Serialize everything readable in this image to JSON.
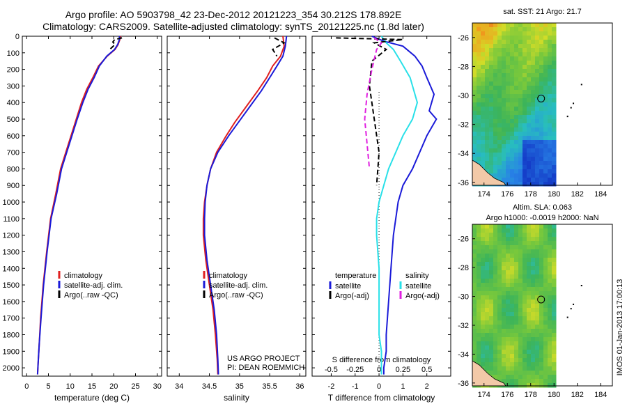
{
  "header": {
    "line1": "Argo profile: AO 5903798_42 23-Dec-2012 20121223_354 30.212S 178.892E",
    "line2": "Climatology: CARS2009. Satellite-adjusted climatology: synTS_20121225.nc (1.8d later)"
  },
  "colors": {
    "climatology": "#e02020",
    "satellite": "#1a1ad8",
    "argo": "#000000",
    "sal_satellite": "#28e0e8",
    "sal_argo": "#e020e0"
  },
  "depth_ticks": [
    0,
    100,
    200,
    300,
    400,
    500,
    600,
    700,
    800,
    900,
    1000,
    1100,
    1200,
    1300,
    1400,
    1500,
    1600,
    1700,
    1800,
    1900,
    2000
  ],
  "chart_data": [
    {
      "type": "line",
      "xlabel": "temperature (deg C)",
      "xlim": [
        -1,
        31
      ],
      "ylim": [
        2050,
        0
      ],
      "xticks": [
        0,
        5,
        10,
        15,
        20,
        25,
        30
      ],
      "legend": [
        "climatology",
        "satellite-adj. clim.",
        "Argo(..raw -QC)"
      ],
      "series": [
        {
          "name": "climatology",
          "color": "#e02020",
          "x": [
            21.6,
            21.4,
            21.0,
            20.3,
            18.5,
            16.5,
            15.2,
            13.8,
            12.6,
            11.4,
            10.2,
            9.0,
            7.8,
            6.7,
            5.5,
            4.6,
            3.8,
            3.2,
            2.9,
            2.6,
            2.5
          ],
          "y": [
            0,
            20,
            50,
            80,
            120,
            180,
            250,
            320,
            400,
            500,
            600,
            700,
            800,
            950,
            1100,
            1300,
            1500,
            1700,
            1850,
            1990,
            2040
          ]
        },
        {
          "name": "satellite-adj. clim.",
          "color": "#1a1ad8",
          "x": [
            21.3,
            21.3,
            20.9,
            20.2,
            18.4,
            16.7,
            15.5,
            14.1,
            12.9,
            11.6,
            10.4,
            9.2,
            8.0,
            6.9,
            5.6,
            4.7,
            3.9,
            3.3,
            2.9,
            2.6,
            2.5
          ],
          "y": [
            0,
            20,
            50,
            80,
            120,
            180,
            250,
            320,
            400,
            500,
            600,
            700,
            800,
            950,
            1100,
            1300,
            1500,
            1700,
            1850,
            1990,
            2040
          ]
        },
        {
          "name": "Argo(..raw -QC)",
          "color": "#000000",
          "dashed": true,
          "x": [
            21.9,
            20.2,
            19.8,
            20.3,
            19.1
          ],
          "y": [
            10,
            20,
            35,
            50,
            80
          ]
        }
      ]
    },
    {
      "type": "line",
      "xlabel": "salinity",
      "xlim": [
        33.8,
        36.1
      ],
      "ylim": [
        2050,
        0
      ],
      "xticks": [
        34,
        34.5,
        35,
        35.5,
        36
      ],
      "xticklabels": [
        "34",
        "34.5",
        "35",
        "35.5",
        "36"
      ],
      "legend": [
        "climatology",
        "satellite-adj. clim.",
        "Argo(..raw -QC)"
      ],
      "annotations": [
        "US ARGO PROJECT",
        "PI: DEAN ROEMMICH"
      ],
      "series": [
        {
          "name": "climatology",
          "color": "#e02020",
          "x": [
            35.72,
            35.74,
            35.68,
            35.55,
            35.45,
            35.3,
            35.12,
            34.92,
            34.78,
            34.62,
            34.52,
            34.46,
            34.42,
            34.4,
            34.4,
            34.44,
            34.5,
            34.56,
            34.6,
            34.63,
            34.64
          ],
          "y": [
            0,
            60,
            120,
            180,
            250,
            330,
            420,
            520,
            600,
            700,
            800,
            900,
            1000,
            1100,
            1200,
            1350,
            1500,
            1650,
            1800,
            1950,
            2040
          ]
        },
        {
          "name": "satellite-adj. clim.",
          "color": "#1a1ad8",
          "x": [
            35.78,
            35.76,
            35.72,
            35.62,
            35.5,
            35.36,
            35.18,
            34.98,
            34.82,
            34.64,
            34.52,
            34.46,
            34.43,
            34.42,
            34.42,
            34.46,
            34.52,
            34.58,
            34.62,
            34.64,
            34.65
          ],
          "y": [
            0,
            60,
            120,
            180,
            250,
            330,
            420,
            520,
            600,
            700,
            800,
            900,
            1000,
            1100,
            1200,
            1350,
            1500,
            1650,
            1800,
            1950,
            2040
          ]
        },
        {
          "name": "Argo(..raw -QC)",
          "color": "#000000",
          "dashed": true,
          "x": [
            35.58,
            35.74,
            35.55,
            35.62
          ],
          "y": [
            10,
            40,
            80,
            120
          ]
        }
      ]
    },
    {
      "type": "line",
      "xlabel": "T difference from climatology",
      "x2label": "S difference from climatology",
      "xlim": [
        -2.8,
        3.0
      ],
      "ylim": [
        2050,
        0
      ],
      "xticks": [
        -2,
        -1,
        0,
        1,
        2
      ],
      "x2ticks": [
        -0.5,
        -0.25,
        0,
        0.25,
        0.5
      ],
      "legend_groups": {
        "temperature": [
          "satellite",
          "Argo(-adj)"
        ],
        "salinity": [
          "satellite",
          "Argo(-adj)"
        ]
      },
      "series": [
        {
          "name": "T satellite",
          "color": "#1a1ad8",
          "x": [
            -0.3,
            0.2,
            1.0,
            1.5,
            1.8,
            2.0,
            2.3,
            2.1,
            2.4,
            2.0,
            1.7,
            1.4,
            1.0,
            0.8,
            0.6,
            0.5,
            0.4,
            0.3,
            0.3,
            0.2,
            0.2
          ],
          "y": [
            0,
            30,
            60,
            120,
            180,
            250,
            350,
            450,
            500,
            600,
            700,
            800,
            900,
            1000,
            1200,
            1400,
            1600,
            1800,
            1900,
            2000,
            2040
          ]
        },
        {
          "name": "S satellite",
          "color": "#28e0e8",
          "x": [
            0.1,
            0.3,
            0.6,
            0.9,
            1.3,
            1.6,
            1.4,
            1.0,
            0.7,
            0.4,
            0.2,
            0.0,
            -0.1,
            -0.1,
            0.0,
            0.0,
            0.0,
            0.1,
            0.1,
            0.1,
            0.1
          ],
          "y": [
            0,
            40,
            80,
            150,
            250,
            400,
            500,
            600,
            700,
            800,
            900,
            1000,
            1100,
            1200,
            1400,
            1600,
            1800,
            1900,
            1950,
            2000,
            2040
          ]
        },
        {
          "name": "T Argo(-adj)",
          "color": "#000000",
          "dashed": true,
          "x": [
            -1.8,
            1.0,
            -0.2,
            0.3,
            -0.3,
            -0.4,
            -0.2,
            0.0,
            -0.1
          ],
          "y": [
            10,
            20,
            40,
            80,
            150,
            300,
            500,
            700,
            900
          ]
        },
        {
          "name": "S Argo(-adj)",
          "color": "#e020e0",
          "dashed": true,
          "x": [
            -0.2,
            0.1,
            -0.1,
            -0.3,
            -0.5,
            -0.6,
            -0.5,
            -0.4
          ],
          "y": [
            10,
            40,
            80,
            200,
            350,
            500,
            650,
            800
          ]
        }
      ]
    },
    {
      "type": "heatmap",
      "title": "sat. SST: 21 Argo: 21.7",
      "xlim": [
        173,
        185
      ],
      "ylim": [
        -36.2,
        -25
      ],
      "xticks": [
        174,
        176,
        178,
        180,
        182,
        184
      ],
      "yticks": [
        -26,
        -28,
        -30,
        -32,
        -34,
        -36
      ],
      "marker": {
        "lon": 178.892,
        "lat": -30.212
      }
    },
    {
      "type": "heatmap",
      "title": "Altim. SLA: 0.063",
      "subtitle": "Argo h1000: -0.0019 h2000: NaN",
      "xlim": [
        173,
        185
      ],
      "ylim": [
        -36.2,
        -25
      ],
      "xticks": [
        174,
        176,
        178,
        180,
        182,
        184
      ],
      "yticks": [
        -26,
        -28,
        -30,
        -32,
        -34,
        -36
      ],
      "marker": {
        "lon": 178.892,
        "lat": -30.212
      }
    }
  ],
  "footer": {
    "timestamp": "IMOS 01-Jan-2013 17:00:13"
  }
}
